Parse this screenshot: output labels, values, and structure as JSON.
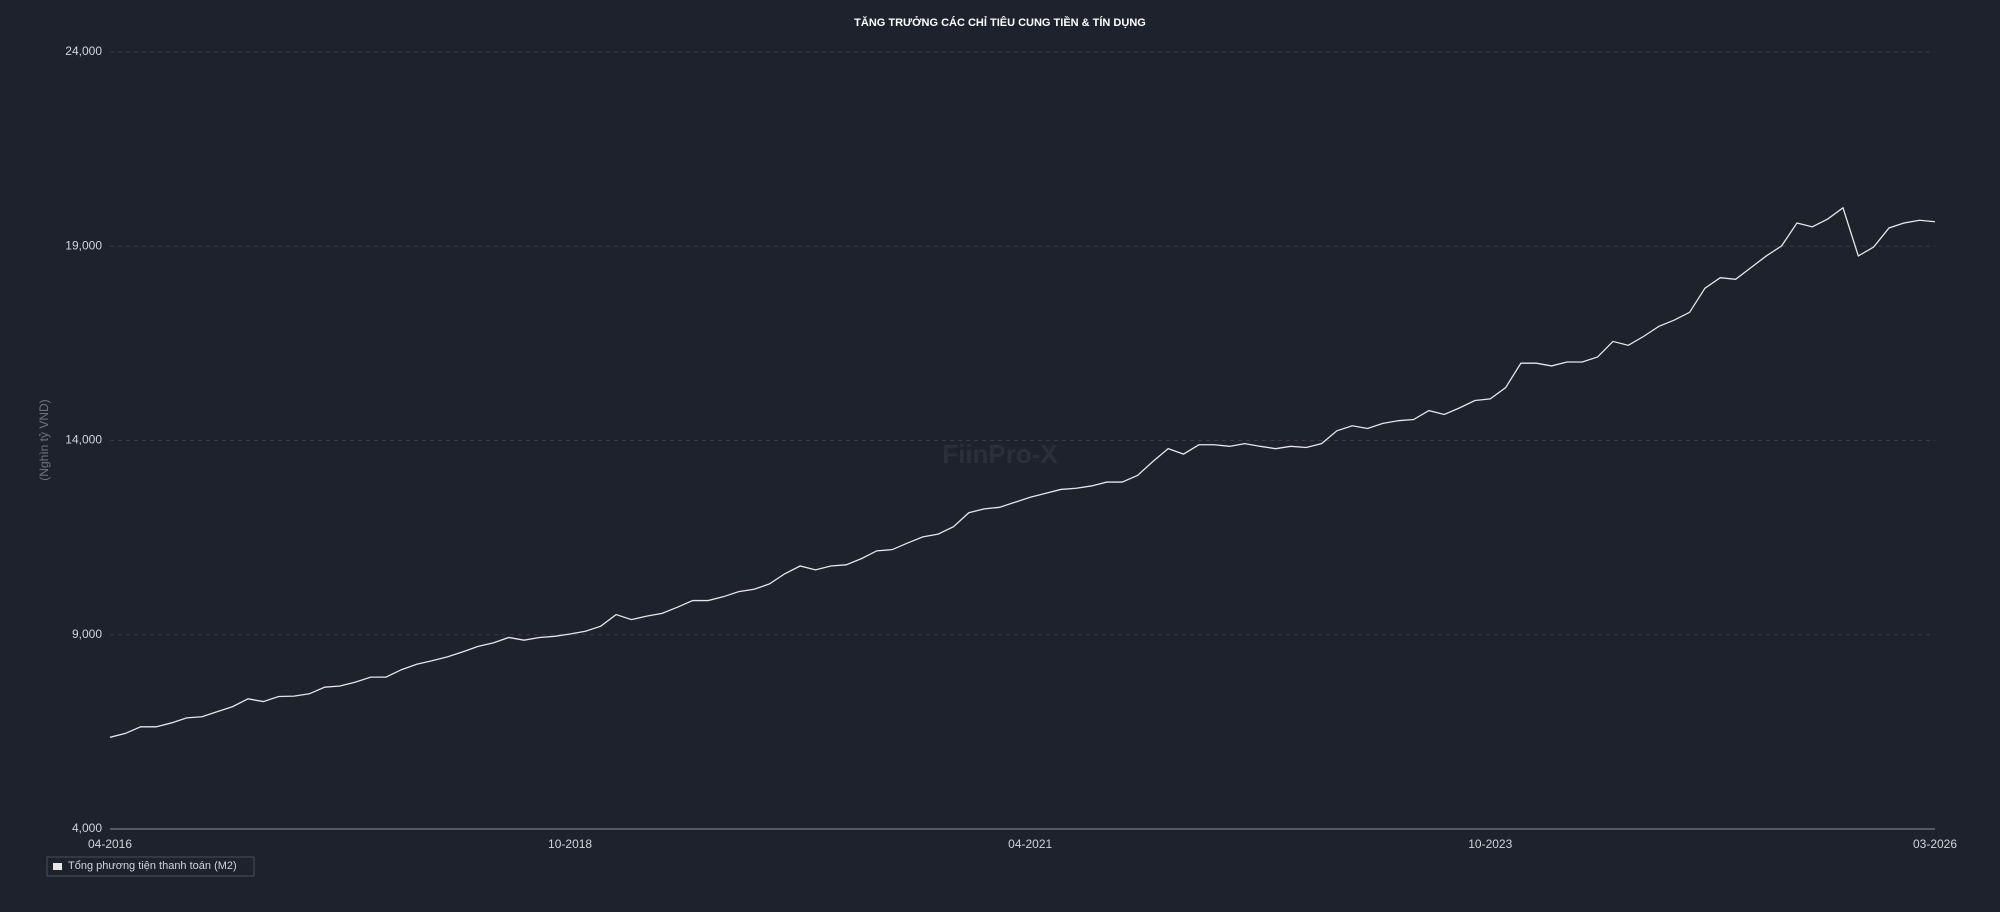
{
  "chart_data": {
    "type": "line",
    "title": "TĂNG TRƯỞNG CÁC CHỈ TIÊU CUNG TIỀN & TÍN DỤNG",
    "y_label": "(Nghìn tỷ VND)",
    "watermark": "FiinPro-X",
    "categories": [
      "04-2016",
      null,
      null,
      null,
      null,
      null,
      null,
      null,
      null,
      null,
      null,
      null,
      null,
      null,
      null,
      null,
      null,
      null,
      null,
      null,
      null,
      null,
      null,
      null,
      null,
      null,
      null,
      null,
      null,
      null,
      "10-2018",
      null,
      null,
      null,
      null,
      null,
      null,
      null,
      null,
      null,
      null,
      null,
      null,
      null,
      null,
      null,
      null,
      null,
      null,
      null,
      null,
      null,
      null,
      null,
      null,
      null,
      null,
      null,
      null,
      null,
      "04-2021",
      null,
      null,
      null,
      null,
      null,
      null,
      null,
      null,
      null,
      null,
      null,
      null,
      null,
      null,
      null,
      null,
      null,
      null,
      null,
      null,
      null,
      null,
      null,
      null,
      null,
      null,
      null,
      null,
      null,
      "10-2023",
      null,
      null,
      null,
      null,
      null,
      null,
      null,
      null,
      null,
      null,
      null,
      null,
      null,
      null,
      null,
      null,
      null,
      null,
      null,
      null,
      null,
      null,
      null,
      null,
      null,
      null,
      null,
      null,
      "03-2026"
    ],
    "series": [
      {
        "name": "Tổng phương tiện thanh toán (M2)",
        "color": "#e6e6e6",
        "values": [
          6360,
          6460,
          6630,
          6630,
          6730,
          6860,
          6890,
          7020,
          7150,
          7350,
          7280,
          7410,
          7420,
          7480,
          7650,
          7680,
          7780,
          7910,
          7910,
          8100,
          8240,
          8330,
          8430,
          8560,
          8700,
          8790,
          8930,
          8860,
          8930,
          8960,
          9020,
          9090,
          9220,
          9520,
          9390,
          9480,
          9550,
          9710,
          9880,
          9880,
          9980,
          10110,
          10170,
          10310,
          10570,
          10770,
          10670,
          10770,
          10800,
          10960,
          11160,
          11190,
          11360,
          11520,
          11590,
          11780,
          12140,
          12240,
          12280,
          12410,
          12540,
          12640,
          12740,
          12770,
          12830,
          12930,
          12930,
          13100,
          13460,
          13790,
          13650,
          13890,
          13890,
          13850,
          13920,
          13850,
          13790,
          13850,
          13820,
          13920,
          14250,
          14380,
          14310,
          14440,
          14510,
          14540,
          14770,
          14670,
          14840,
          15030,
          15070,
          15360,
          15990,
          15990,
          15920,
          16020,
          16020,
          16150,
          16550,
          16450,
          16680,
          16940,
          17100,
          17300,
          17920,
          18190,
          18150,
          18450,
          18750,
          19010,
          19600,
          19500,
          19700,
          19990,
          18750,
          18980,
          19470,
          19600,
          19670,
          19630
        ]
      }
    ],
    "ylim": [
      4000,
      24000
    ],
    "yticks": [
      {
        "value": 4000,
        "label": "4,000"
      },
      {
        "value": 9000,
        "label": "9,000"
      },
      {
        "value": 14000,
        "label": "14,000"
      },
      {
        "value": 19000,
        "label": "19,000"
      },
      {
        "value": 24000,
        "label": "24,000"
      }
    ],
    "grid": true,
    "legend": "bottom-left"
  }
}
